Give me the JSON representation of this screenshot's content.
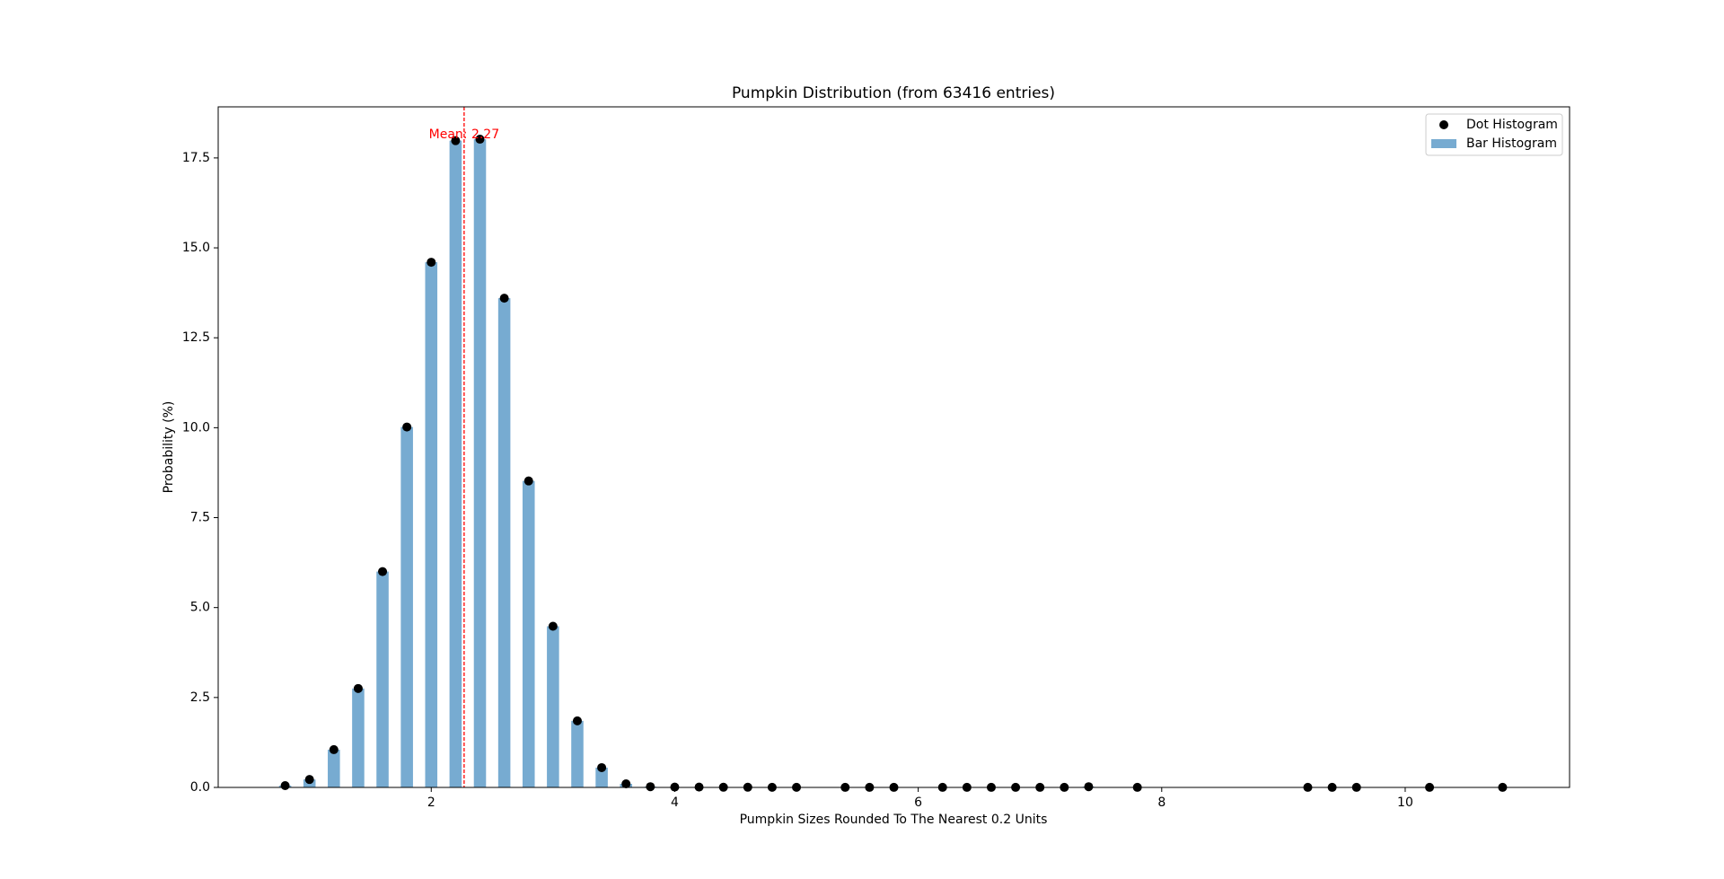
{
  "chart_data": {
    "type": "bar",
    "title": "Pumpkin Distribution (from 63416 entries)",
    "x_label": "Pumpkin Sizes Rounded To The Nearest 0.2 Units",
    "y_label": "Probability (%)",
    "x": [
      0.8,
      1.0,
      1.2,
      1.4,
      1.6,
      1.8,
      2.0,
      2.2,
      2.4,
      2.6,
      2.8,
      3.0,
      3.2,
      3.4,
      3.6,
      3.8,
      4.0,
      4.2,
      4.4,
      4.6,
      4.8,
      5.0,
      5.4,
      5.6,
      5.8,
      6.2,
      6.4,
      6.6,
      6.8,
      7.0,
      7.2,
      7.4,
      7.8,
      9.2,
      9.4,
      9.6,
      10.2,
      10.8
    ],
    "series": [
      {
        "name": "Dot Histogram",
        "type": "scatter",
        "color": "#000000",
        "values": [
          0.05,
          0.22,
          1.05,
          2.75,
          6.0,
          10.02,
          14.6,
          17.98,
          18.02,
          13.6,
          8.52,
          4.48,
          1.85,
          0.55,
          0.1,
          0.02,
          0.01,
          0.01,
          0.005,
          0.005,
          0.003,
          0.003,
          0.002,
          0.002,
          0.002,
          0.002,
          0.002,
          0.002,
          0.002,
          0.002,
          0.002,
          0.02,
          0.002,
          0.002,
          0.002,
          0.002,
          0.002,
          0.002
        ]
      },
      {
        "name": "Bar Histogram",
        "type": "bar",
        "color": "#77abd1",
        "values": [
          0.05,
          0.22,
          1.05,
          2.75,
          6.0,
          10.02,
          14.6,
          17.98,
          18.02,
          13.6,
          8.52,
          4.48,
          1.85,
          0.55,
          0.1,
          0.02,
          0.01,
          0.01,
          0.005,
          0.005,
          0.003,
          0.003,
          0.002,
          0.002,
          0.002,
          0.002,
          0.002,
          0.002,
          0.002,
          0.002,
          0.002,
          0.02,
          0.002,
          0.002,
          0.002,
          0.002,
          0.002,
          0.002
        ]
      }
    ],
    "bar_width": 0.1,
    "mean": {
      "value": 2.27,
      "label": "Mean: 2.27",
      "color": "#ff0000"
    },
    "xlim": [
      0.25,
      11.35
    ],
    "ylim": [
      0,
      18.92
    ],
    "xticks": [
      2,
      4,
      6,
      8,
      10
    ],
    "yticks": [
      {
        "value": 0,
        "label": "0.0"
      },
      2.5,
      {
        "value": 5,
        "label": "5.0"
      },
      7.5,
      {
        "value": 10,
        "label": "10.0"
      },
      12.5,
      {
        "value": 15,
        "label": "15.0"
      },
      17.5
    ],
    "legend": "upper right",
    "grid": false
  }
}
